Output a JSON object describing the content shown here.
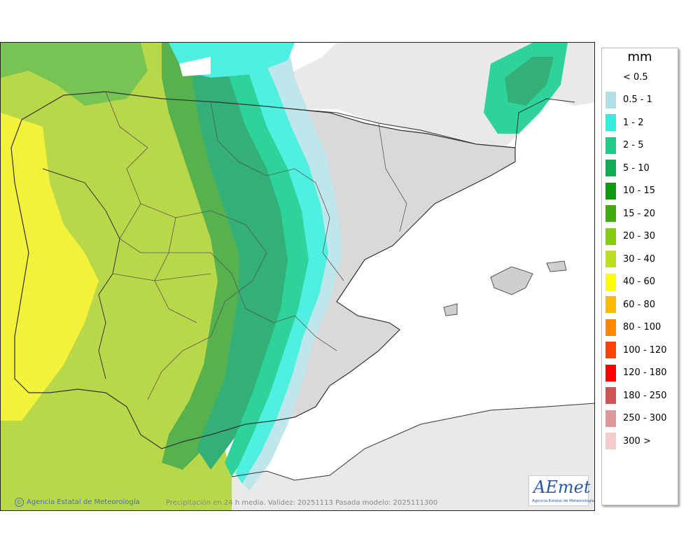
{
  "map": {
    "credit_left": "Agencia Estatal de Meteorología",
    "credit_center": "Precipitación en 24 h media. Validez: 20251113 Pasada modelo: 2025111300",
    "logo_text": "AEmet",
    "logo_subtitle": "Agencia Estatal de Meteorología",
    "colors": {
      "sea": "#ffffff",
      "land_nodata": "#e9e9e9",
      "relief_gray": "#d9d9d9"
    }
  },
  "legend": {
    "unit": "mm",
    "items": [
      {
        "label": "< 0.5",
        "color": ""
      },
      {
        "label": "0.5 - 1",
        "color": "#b0e0e6"
      },
      {
        "label": "1 - 2",
        "color": "#33eedd"
      },
      {
        "label": "2 - 5",
        "color": "#22cc88"
      },
      {
        "label": "5 - 10",
        "color": "#11aa55"
      },
      {
        "label": "10 - 15",
        "color": "#119911"
      },
      {
        "label": "15 - 20",
        "color": "#44aa11"
      },
      {
        "label": "20 - 30",
        "color": "#88cc11"
      },
      {
        "label": "30 - 40",
        "color": "#bbdd22"
      },
      {
        "label": "40 - 60",
        "color": "#ffff00"
      },
      {
        "label": "60 - 80",
        "color": "#ffbb00"
      },
      {
        "label": "80 - 100",
        "color": "#ff8800"
      },
      {
        "label": "100 - 120",
        "color": "#ff4400"
      },
      {
        "label": "120 - 180",
        "color": "#ff0000"
      },
      {
        "label": "180 - 250",
        "color": "#cc5555"
      },
      {
        "label": "250 - 300",
        "color": "#dd9999"
      },
      {
        "label": "300 >",
        "color": "#f4cccc"
      }
    ]
  }
}
